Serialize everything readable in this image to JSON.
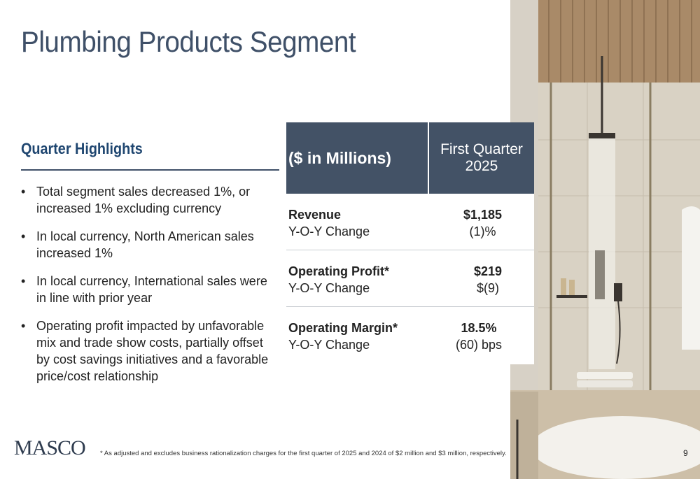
{
  "slide": {
    "title": "Plumbing Products Segment",
    "page_number": "9"
  },
  "highlights": {
    "heading": "Quarter Highlights",
    "items": [
      "Total segment sales decreased 1%, or increased 1% excluding currency",
      "In local currency, North American sales increased 1%",
      "In local currency, International sales were in line with prior year",
      "Operating profit impacted by unfavorable mix and trade show costs, partially offset by cost savings initiatives and a favorable price/cost relationship"
    ]
  },
  "table": {
    "header_label": "($ in Millions)",
    "header_period": "First Quarter 2025",
    "rows": [
      {
        "metric": "Revenue",
        "sub": "Y-O-Y Change",
        "value": "$1,185",
        "change": "(1)%"
      },
      {
        "metric": "Operating Profit*",
        "sub": "Y-O-Y Change",
        "value": "$219",
        "change": "$(9)"
      },
      {
        "metric": "Operating Margin*",
        "sub": "Y-O-Y Change",
        "value": "18.5%",
        "change": "(60) bps"
      }
    ]
  },
  "footer": {
    "logo": "MASCO",
    "footnote": "* As adjusted and excludes business rationalization charges for the first quarter of 2025 and 2024 of $2 million and $3 million, respectively."
  },
  "colors": {
    "title": "#3f5068",
    "heading": "#1f4670",
    "table_header_bg": "#435266"
  },
  "image": {
    "subject": "bathroom-shower-photo"
  }
}
